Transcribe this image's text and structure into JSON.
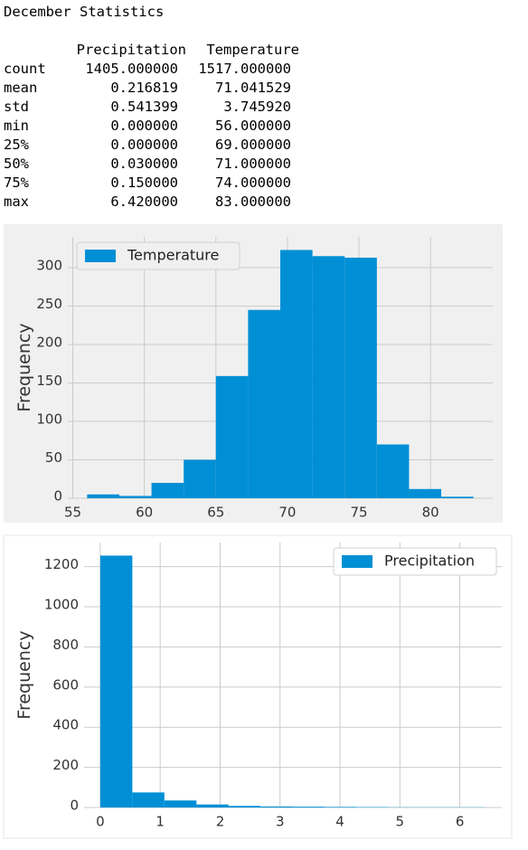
{
  "header": {
    "title": "December Statistics"
  },
  "table": {
    "columns": [
      "Precipitation",
      "Temperature"
    ],
    "rows": [
      {
        "label": "count",
        "cells": [
          "1405.000000",
          "1517.000000"
        ]
      },
      {
        "label": "mean",
        "cells": [
          "0.216819",
          "71.041529"
        ]
      },
      {
        "label": "std",
        "cells": [
          "0.541399",
          "3.745920"
        ]
      },
      {
        "label": "min",
        "cells": [
          "0.000000",
          "56.000000"
        ]
      },
      {
        "label": "25%",
        "cells": [
          "0.000000",
          "69.000000"
        ]
      },
      {
        "label": "50%",
        "cells": [
          "0.030000",
          "71.000000"
        ]
      },
      {
        "label": "75%",
        "cells": [
          "0.150000",
          "74.000000"
        ]
      },
      {
        "label": "max",
        "cells": [
          "6.420000",
          "83.000000"
        ]
      }
    ]
  },
  "chart_data": [
    {
      "type": "histogram",
      "ylabel": "Frequency",
      "bins": [
        56,
        58.25,
        60.5,
        62.75,
        65,
        67.25,
        69.5,
        71.75,
        74,
        76.25,
        78.5,
        80.75,
        83
      ],
      "series": [
        {
          "name": "Temperature",
          "color": "#008fd5",
          "values": [
            5,
            3,
            20,
            50,
            159,
            245,
            323,
            315,
            313,
            70,
            12,
            2
          ]
        }
      ],
      "xlim": [
        54.65,
        84.35
      ],
      "xticks": [
        55,
        60,
        65,
        70,
        75,
        80
      ],
      "ylim": [
        0,
        340
      ],
      "yticks": [
        0,
        50,
        100,
        150,
        200,
        250,
        300
      ],
      "grid": true,
      "legend": "upper left",
      "background": "#f0f0f0"
    },
    {
      "type": "histogram",
      "ylabel": "Frequency",
      "bins": [
        0,
        0.535,
        1.07,
        1.605,
        2.14,
        2.675,
        3.21,
        3.745,
        4.28,
        4.815,
        5.35,
        5.885,
        6.42
      ],
      "series": [
        {
          "name": "Precipitation",
          "color": "#008fd5",
          "values": [
            1255,
            75,
            35,
            15,
            8,
            5,
            4,
            3,
            2,
            1,
            1,
            1
          ]
        }
      ],
      "xlim": [
        -0.27,
        6.7
      ],
      "xticks": [
        0,
        1,
        2,
        3,
        4,
        5,
        6
      ],
      "ylim": [
        0,
        1320
      ],
      "yticks": [
        0,
        200,
        400,
        600,
        800,
        1000,
        1200
      ],
      "grid": true,
      "legend": "upper right",
      "background": "#ffffff"
    }
  ]
}
